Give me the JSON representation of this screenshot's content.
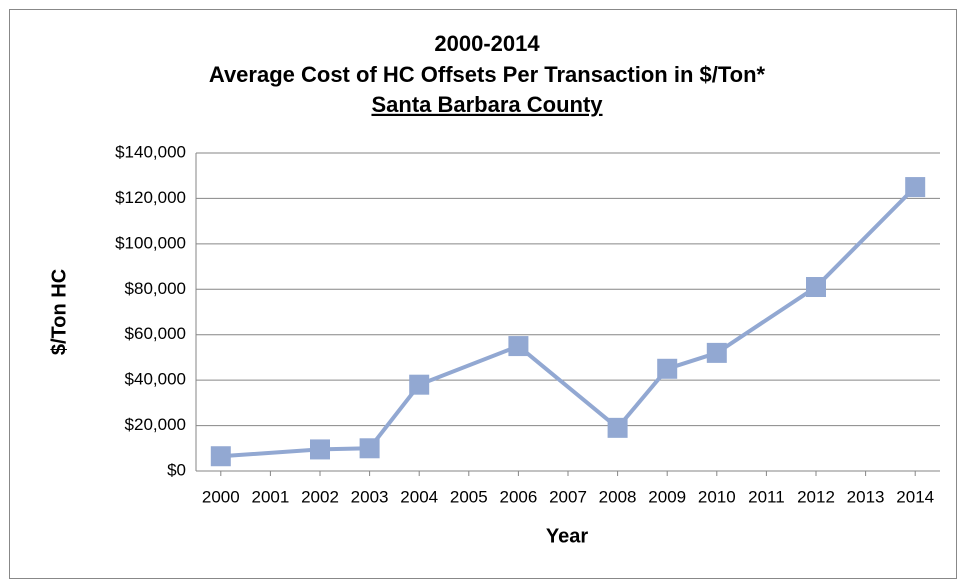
{
  "chart_data": {
    "type": "line",
    "title": [
      "2000-2014",
      "Average Cost of HC Offsets Per Transaction in  $/Ton*",
      "Santa Barbara County"
    ],
    "x_label": "Year",
    "y_label": "$/Ton HC",
    "series": [
      {
        "name": "Average Cost",
        "color": "#92a8d2",
        "x": [
          2000,
          2002,
          2003,
          2004,
          2006,
          2008,
          2009,
          2010,
          2012,
          2014
        ],
        "values": [
          6500,
          9500,
          10000,
          38000,
          55000,
          19000,
          45000,
          52000,
          81000,
          125000
        ]
      }
    ],
    "xlim": [
      1999.5,
      2014.5
    ],
    "xticks": [
      2000,
      2001,
      2002,
      2003,
      2004,
      2005,
      2006,
      2007,
      2008,
      2009,
      2010,
      2011,
      2012,
      2013,
      2014
    ],
    "ylim": [
      0,
      140000
    ],
    "yticks": [
      {
        "value": 0,
        "label": "$0"
      },
      {
        "value": 20000,
        "label": "$20,000"
      },
      {
        "value": 40000,
        "label": "$40,000"
      },
      {
        "value": 60000,
        "label": "$60,000"
      },
      {
        "value": 80000,
        "label": "$80,000"
      },
      {
        "value": 100000,
        "label": "$100,000"
      },
      {
        "value": 120000,
        "label": "$120,000"
      },
      {
        "value": 140000,
        "label": "$140,000"
      }
    ],
    "grid": true
  }
}
